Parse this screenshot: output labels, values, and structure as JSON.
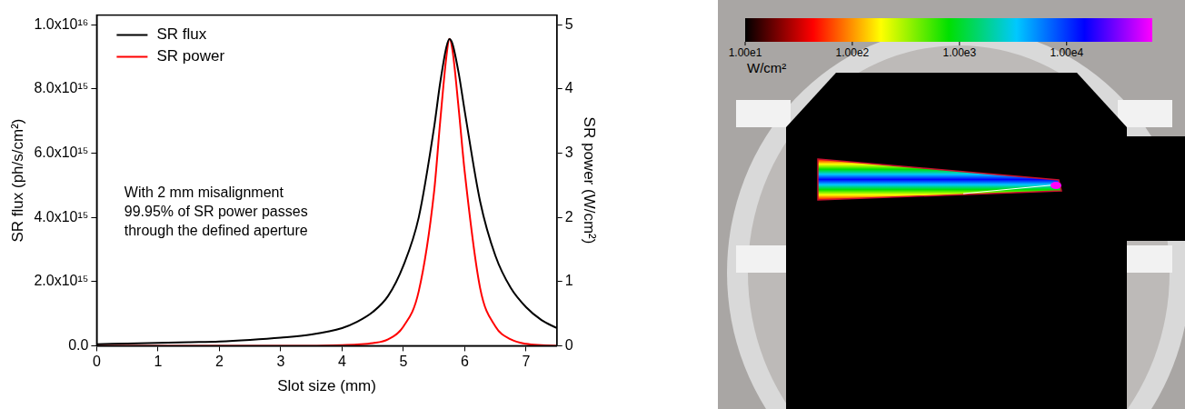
{
  "chart_data": {
    "type": "line",
    "xlabel": "Slot size (mm)",
    "ylabel": "SR flux (ph/s/cm²)",
    "y2label": "SR power (W/cm²)",
    "annotation": [
      "With 2 mm misalignment",
      "99.95% of SR power passes",
      "through the defined aperture"
    ],
    "x": [
      0,
      0.5,
      1,
      1.5,
      2,
      2.5,
      3,
      3.5,
      4,
      4.25,
      4.5,
      4.75,
      5,
      5.25,
      5.5,
      5.6,
      5.7,
      5.75,
      5.8,
      5.9,
      6,
      6.25,
      6.5,
      6.75,
      7,
      7.25,
      7.5
    ],
    "series": [
      {
        "name": "SR flux",
        "color": "#000000",
        "values": [
          50000000000000.0,
          70000000000000.0,
          90000000000000.0,
          110000000000000.0,
          130000000000000.0,
          180000000000000.0,
          250000000000000.0,
          350000000000000.0,
          550000000000000.0,
          750000000000000.0,
          1050000000000000.0,
          1550000000000000.0,
          2500000000000000.0,
          4000000000000000.0,
          6800000000000000.0,
          8200000000000000.0,
          9300000000000000.0,
          9550000000000000.0,
          9400000000000000.0,
          8500000000000000.0,
          7300000000000000.0,
          4500000000000000.0,
          2800000000000000.0,
          1800000000000000.0,
          1200000000000000.0,
          800000000000000.0,
          550000000000000.0
        ]
      },
      {
        "name": "SR power",
        "color": "#ff0000",
        "axis": "y2",
        "values": [
          0,
          0,
          0,
          0,
          0,
          0,
          0,
          0,
          0.01,
          0.02,
          0.04,
          0.1,
          0.3,
          0.85,
          2.4,
          3.5,
          4.5,
          4.78,
          4.6,
          3.7,
          2.7,
          0.9,
          0.3,
          0.1,
          0.03,
          0.01,
          0
        ]
      }
    ],
    "xlim": [
      0,
      7.5
    ],
    "xticks": [
      0,
      1,
      2,
      3,
      4,
      5,
      6,
      7
    ],
    "ylim": [
      0,
      1.03e+16
    ],
    "yticks": [
      {
        "value": 0,
        "label": "0.0"
      },
      {
        "value": 2000000000000000.0,
        "label": "2.0x10¹⁵"
      },
      {
        "value": 4000000000000000.0,
        "label": "4.0x10¹⁵"
      },
      {
        "value": 6000000000000000.0,
        "label": "6.0x10¹⁵"
      },
      {
        "value": 8000000000000000.0,
        "label": "8.0x10¹⁵"
      },
      {
        "value": 1e+16,
        "label": "1.0x10¹⁶"
      }
    ],
    "y2lim": [
      0,
      5.15
    ],
    "y2ticks": [
      0,
      1,
      2,
      3,
      4,
      5
    ],
    "grid": false,
    "legend": "top-left"
  },
  "render": {
    "colorbar": {
      "label": "W/cm²",
      "log": true,
      "range": [
        10,
        63000
      ],
      "ticks": [
        {
          "value": 10,
          "label": "1.00e1"
        },
        {
          "value": 100,
          "label": "1.00e2"
        },
        {
          "value": 1000,
          "label": "1.00e3"
        },
        {
          "value": 10000,
          "label": "1.00e4"
        }
      ],
      "colors": [
        "#000000",
        "#ff0000",
        "#ffff00",
        "#00e000",
        "#00c8ff",
        "#0000ff",
        "#ff00ff"
      ]
    }
  }
}
